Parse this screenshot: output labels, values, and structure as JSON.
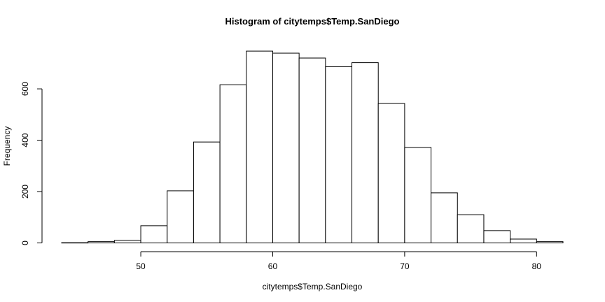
{
  "chart_data": {
    "type": "bar",
    "title": "Histogram of citytemps$Temp.SanDiego",
    "xlabel": "citytemps$Temp.SanDiego",
    "ylabel": "Frequency",
    "bin_edges": [
      44,
      46,
      48,
      50,
      52,
      54,
      56,
      58,
      60,
      62,
      64,
      66,
      68,
      70,
      72,
      74,
      76,
      78,
      80,
      82
    ],
    "values": [
      1,
      5,
      10,
      67,
      203,
      393,
      616,
      747,
      739,
      720,
      686,
      702,
      543,
      372,
      195,
      110,
      48,
      15,
      5
    ],
    "xlim": [
      44,
      82
    ],
    "ylim": [
      0,
      750
    ],
    "x_ticks": [
      50,
      60,
      70,
      80
    ],
    "y_ticks": [
      0,
      200,
      400,
      600
    ],
    "grid": false,
    "legend": "none",
    "colors": {
      "bar_fill": "#ffffff",
      "bar_stroke": "#000000"
    }
  }
}
